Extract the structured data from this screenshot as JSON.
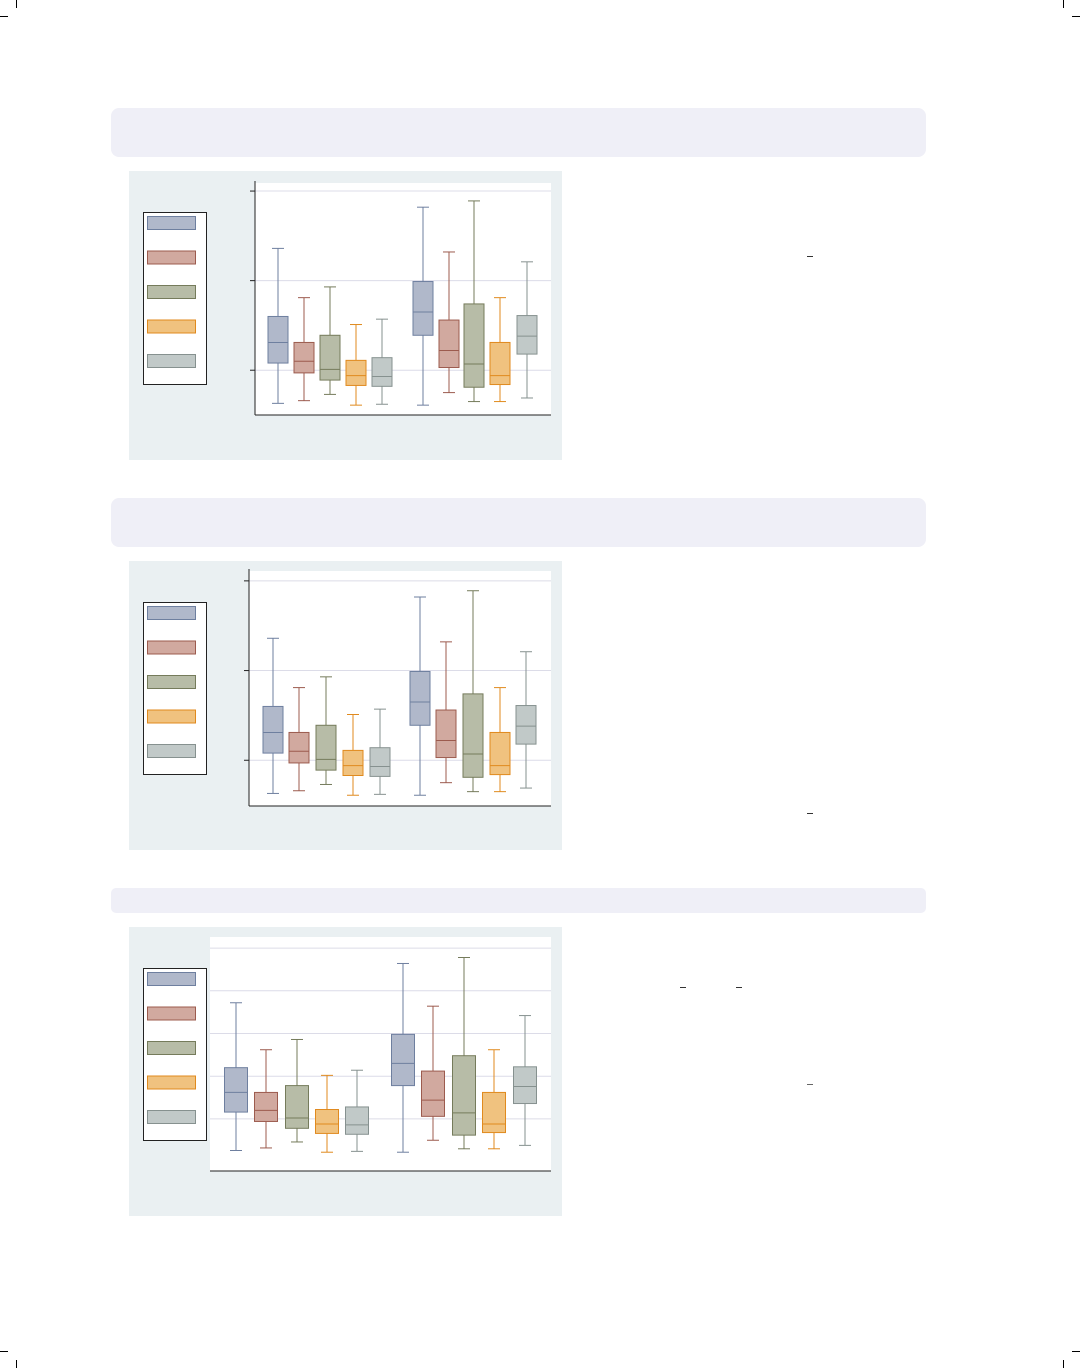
{
  "colors": {
    "header_band": "#efeff7",
    "panel_bg": "#eaf0f2",
    "series": [
      {
        "fill": "#b0b8ca",
        "stroke": "#6e7f9f"
      },
      {
        "fill": "#d1a99f",
        "stroke": "#9c5b4e"
      },
      {
        "fill": "#b7bca7",
        "stroke": "#757b5b"
      },
      {
        "fill": "#f0c27f",
        "stroke": "#e08a1e"
      },
      {
        "fill": "#c1c9c8",
        "stroke": "#86918f"
      }
    ]
  },
  "chart_data": [
    {
      "type": "box",
      "groups": 2,
      "series_per_group": 5,
      "ylim": [
        0.5,
        3.09
      ],
      "gridlines": [
        1,
        2,
        3
      ],
      "boxes": [
        {
          "min": 0.63,
          "q1": 1.08,
          "median": 1.31,
          "q3": 1.6,
          "max": 2.36
        },
        {
          "min": 0.66,
          "q1": 0.97,
          "median": 1.1,
          "q3": 1.31,
          "max": 1.81
        },
        {
          "min": 0.73,
          "q1": 0.89,
          "median": 1.01,
          "q3": 1.39,
          "max": 1.93
        },
        {
          "min": 0.61,
          "q1": 0.83,
          "median": 0.94,
          "q3": 1.11,
          "max": 1.51
        },
        {
          "min": 0.62,
          "q1": 0.82,
          "median": 0.93,
          "q3": 1.14,
          "max": 1.57
        },
        {
          "min": 0.61,
          "q1": 1.39,
          "median": 1.65,
          "q3": 1.99,
          "max": 2.82
        },
        {
          "min": 0.75,
          "q1": 1.03,
          "median": 1.22,
          "q3": 1.56,
          "max": 2.32
        },
        {
          "min": 0.65,
          "q1": 0.81,
          "median": 1.07,
          "q3": 1.74,
          "max": 2.89
        },
        {
          "min": 0.65,
          "q1": 0.84,
          "median": 0.94,
          "q3": 1.31,
          "max": 1.81
        },
        {
          "min": 0.69,
          "q1": 1.18,
          "median": 1.38,
          "q3": 1.61,
          "max": 2.21
        }
      ]
    },
    {
      "type": "box",
      "groups": 2,
      "series_per_group": 5,
      "ylim": [
        0.49,
        3.11
      ],
      "gridlines": [
        1,
        2,
        3
      ],
      "boxes": [
        {
          "min": 0.63,
          "q1": 1.08,
          "median": 1.31,
          "q3": 1.6,
          "max": 2.36
        },
        {
          "min": 0.66,
          "q1": 0.97,
          "median": 1.1,
          "q3": 1.31,
          "max": 1.81
        },
        {
          "min": 0.73,
          "q1": 0.89,
          "median": 1.01,
          "q3": 1.39,
          "max": 1.93
        },
        {
          "min": 0.61,
          "q1": 0.83,
          "median": 0.94,
          "q3": 1.11,
          "max": 1.51
        },
        {
          "min": 0.62,
          "q1": 0.82,
          "median": 0.93,
          "q3": 1.14,
          "max": 1.57
        },
        {
          "min": 0.61,
          "q1": 1.39,
          "median": 1.65,
          "q3": 1.99,
          "max": 2.82
        },
        {
          "min": 0.75,
          "q1": 1.03,
          "median": 1.22,
          "q3": 1.56,
          "max": 2.32
        },
        {
          "min": 0.65,
          "q1": 0.81,
          "median": 1.07,
          "q3": 1.74,
          "max": 2.89
        },
        {
          "min": 0.65,
          "q1": 0.84,
          "median": 0.94,
          "q3": 1.31,
          "max": 1.81
        },
        {
          "min": 0.69,
          "q1": 1.18,
          "median": 1.38,
          "q3": 1.61,
          "max": 2.21
        }
      ]
    },
    {
      "type": "box",
      "groups": 2,
      "series_per_group": 5,
      "ylim": [
        0.39,
        3.13
      ],
      "gridlines": [
        1,
        1.5,
        2,
        2.5,
        3
      ],
      "boxes": [
        {
          "min": 0.63,
          "q1": 1.08,
          "median": 1.31,
          "q3": 1.6,
          "max": 2.36
        },
        {
          "min": 0.66,
          "q1": 0.97,
          "median": 1.1,
          "q3": 1.31,
          "max": 1.81
        },
        {
          "min": 0.73,
          "q1": 0.89,
          "median": 1.01,
          "q3": 1.39,
          "max": 1.93
        },
        {
          "min": 0.61,
          "q1": 0.83,
          "median": 0.94,
          "q3": 1.11,
          "max": 1.51
        },
        {
          "min": 0.62,
          "q1": 0.82,
          "median": 0.93,
          "q3": 1.14,
          "max": 1.57
        },
        {
          "min": 0.61,
          "q1": 1.39,
          "median": 1.65,
          "q3": 1.99,
          "max": 2.82
        },
        {
          "min": 0.75,
          "q1": 1.03,
          "median": 1.22,
          "q3": 1.56,
          "max": 2.32
        },
        {
          "min": 0.65,
          "q1": 0.81,
          "median": 1.07,
          "q3": 1.74,
          "max": 2.89
        },
        {
          "min": 0.65,
          "q1": 0.84,
          "median": 0.94,
          "q3": 1.31,
          "max": 1.81
        },
        {
          "min": 0.69,
          "q1": 1.18,
          "median": 1.38,
          "q3": 1.61,
          "max": 2.21
        }
      ]
    }
  ]
}
